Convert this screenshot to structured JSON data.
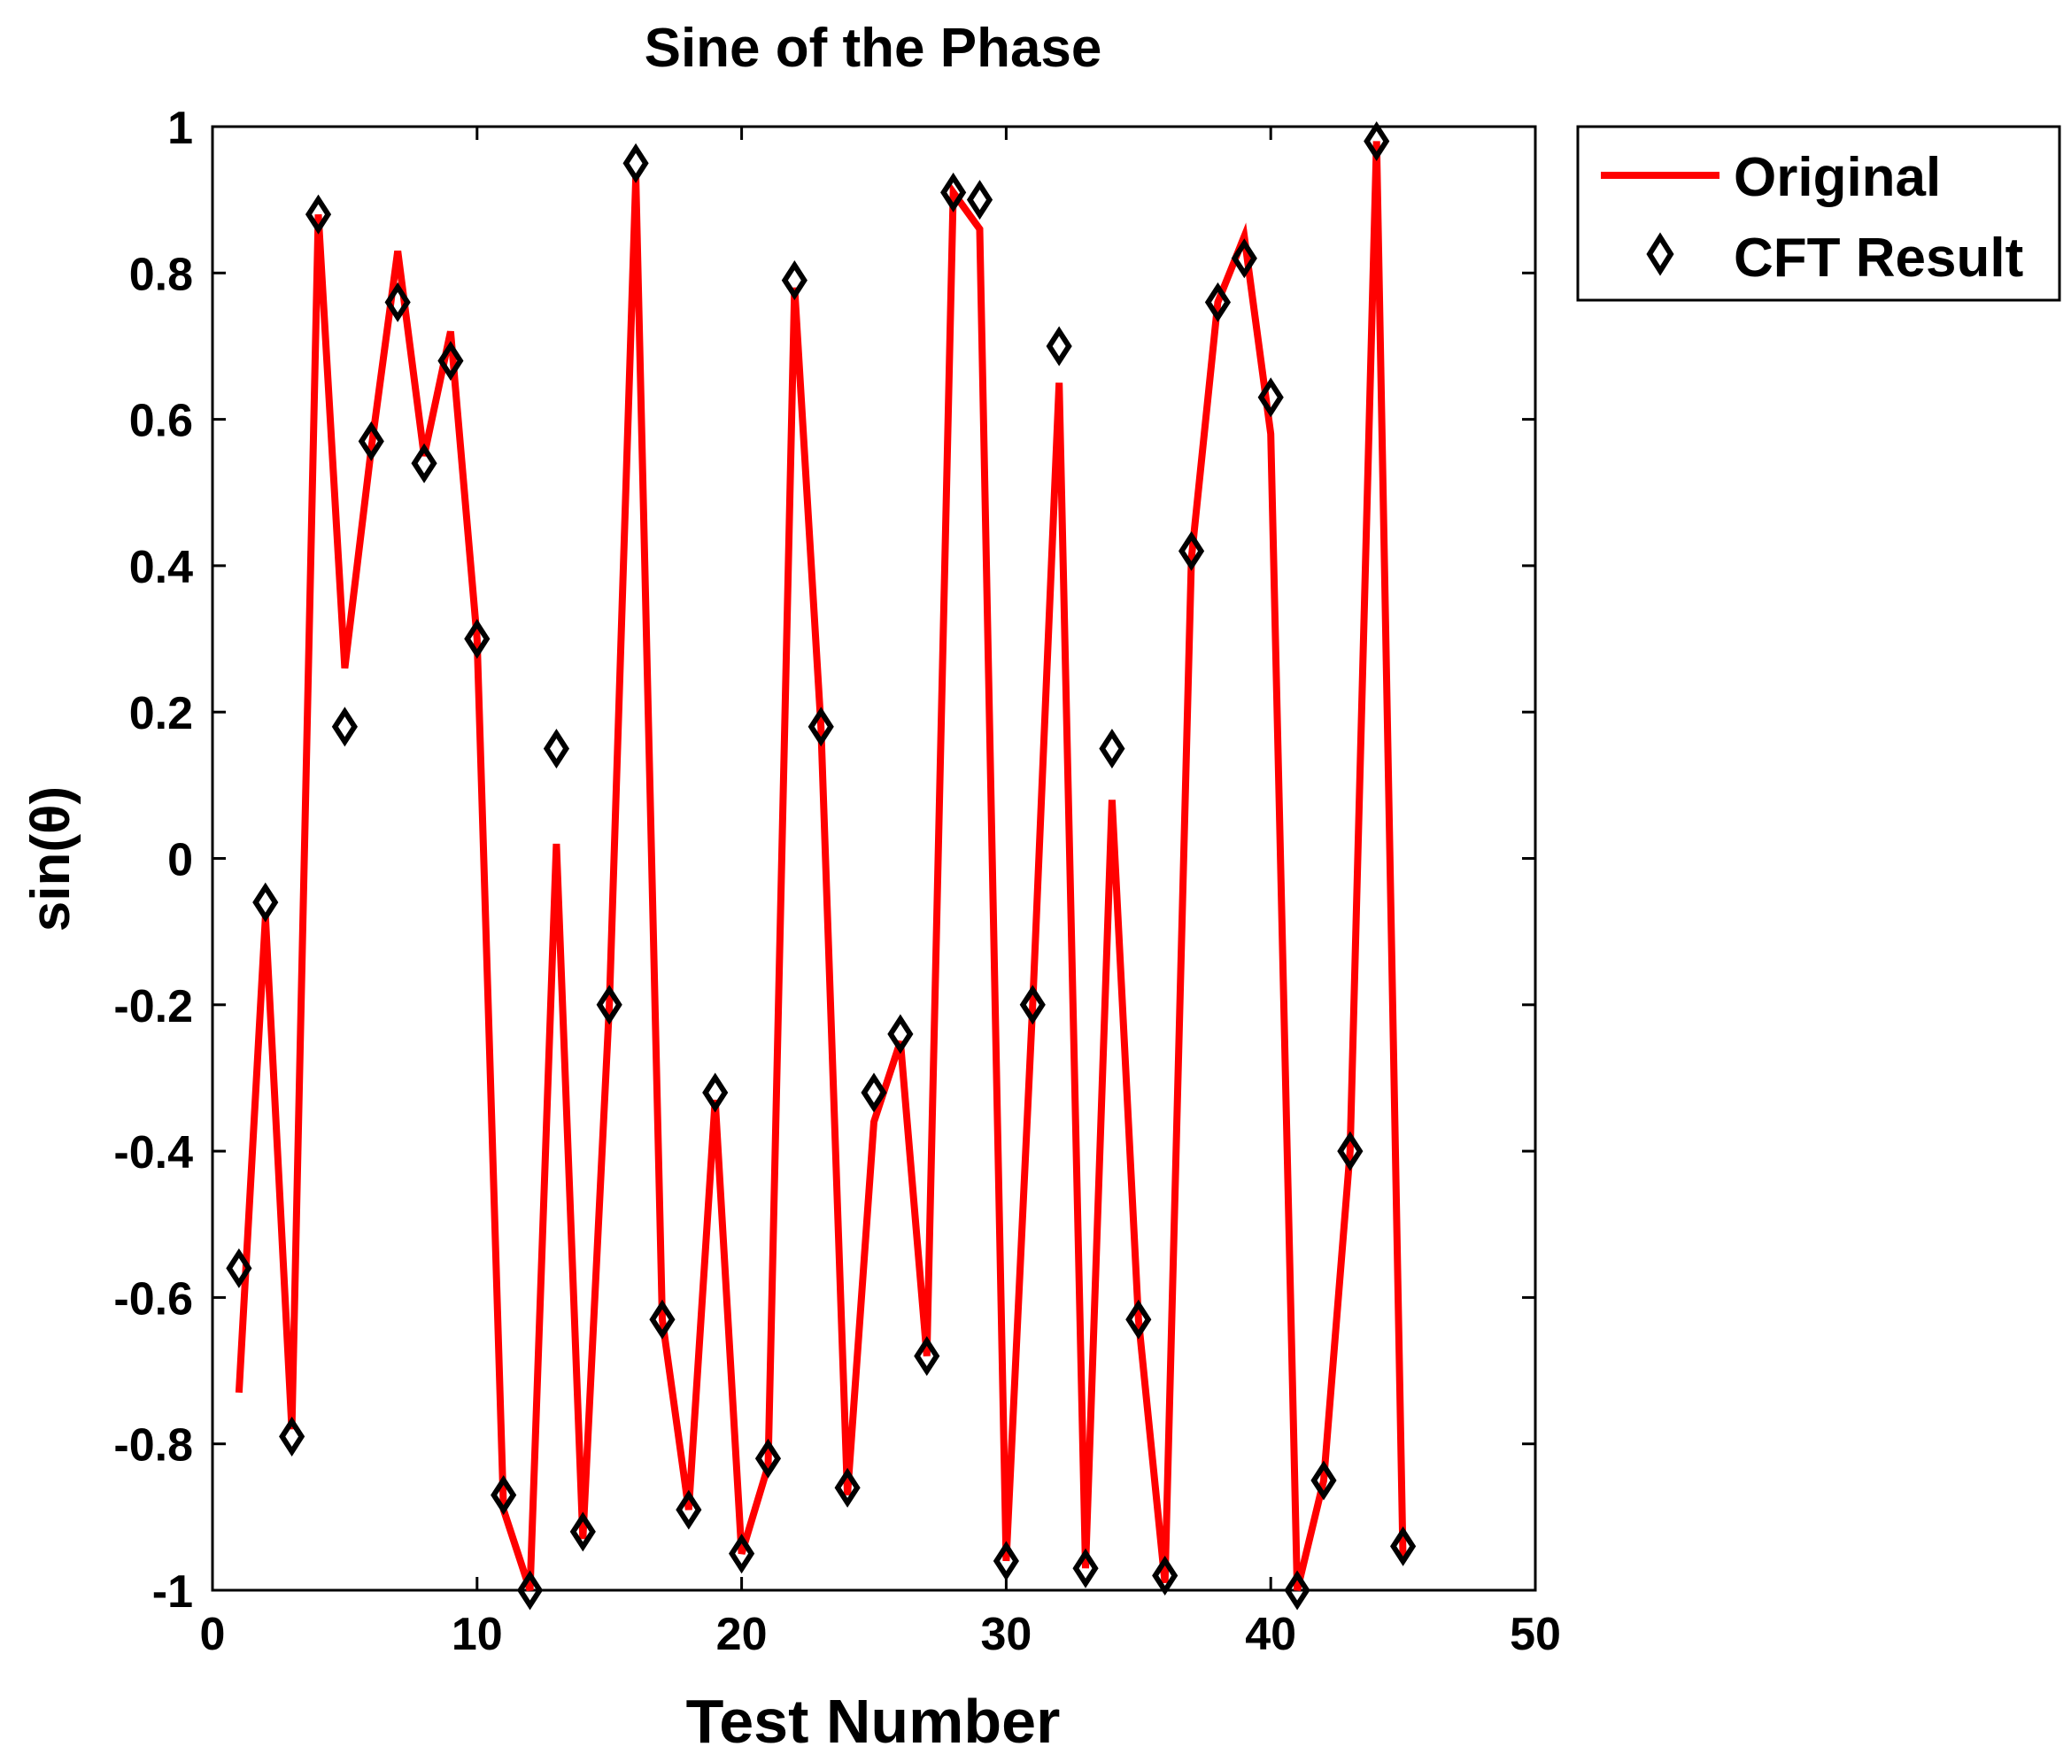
{
  "chart_data": {
    "type": "line",
    "title": "Sine of the Phase",
    "xlabel": "Test Number",
    "ylabel": "sin(θ)",
    "xlim": [
      0,
      50
    ],
    "ylim": [
      -1,
      1
    ],
    "xticks": [
      0,
      10,
      20,
      30,
      40,
      50
    ],
    "yticks": [
      -1,
      -0.8,
      -0.6,
      -0.4,
      -0.2,
      0,
      0.2,
      0.4,
      0.6,
      0.8,
      1
    ],
    "grid": false,
    "legend_position": "outside-top-right",
    "x": [
      1,
      2,
      3,
      4,
      5,
      6,
      7,
      8,
      9,
      10,
      11,
      12,
      13,
      14,
      15,
      16,
      17,
      18,
      19,
      20,
      21,
      22,
      23,
      24,
      25,
      26,
      27,
      28,
      29,
      30,
      31,
      32,
      33,
      34,
      35,
      36,
      37,
      38,
      39,
      40,
      41,
      42,
      43,
      44,
      45
    ],
    "series": [
      {
        "name": "Original",
        "style": "line",
        "color": "#ff0000",
        "values": [
          -0.73,
          -0.08,
          -0.78,
          0.88,
          0.26,
          0.56,
          0.83,
          0.55,
          0.72,
          0.3,
          -0.89,
          -1.0,
          0.02,
          -0.93,
          -0.2,
          0.93,
          -0.63,
          -0.89,
          -0.33,
          -0.95,
          -0.83,
          0.78,
          0.18,
          -0.87,
          -0.36,
          -0.25,
          -0.68,
          0.91,
          0.86,
          -0.96,
          -0.2,
          0.65,
          -0.97,
          0.08,
          -0.63,
          -0.99,
          0.41,
          0.76,
          0.85,
          0.58,
          -1.0,
          -0.85,
          -0.4,
          0.98,
          -0.96
        ]
      },
      {
        "name": "CFT Result",
        "style": "marker-diamond",
        "color": "#000000",
        "values": [
          -0.56,
          -0.06,
          -0.79,
          0.88,
          0.18,
          0.57,
          0.76,
          0.54,
          0.68,
          0.3,
          -0.87,
          -1.0,
          0.15,
          -0.92,
          -0.2,
          0.95,
          -0.63,
          -0.89,
          -0.32,
          -0.95,
          -0.82,
          0.79,
          0.18,
          -0.86,
          -0.32,
          -0.24,
          -0.68,
          0.91,
          0.9,
          -0.96,
          -0.2,
          0.7,
          -0.97,
          0.15,
          -0.63,
          -0.98,
          0.42,
          0.76,
          0.82,
          0.63,
          -1.0,
          -0.85,
          -0.4,
          0.98,
          -0.94
        ]
      }
    ]
  }
}
